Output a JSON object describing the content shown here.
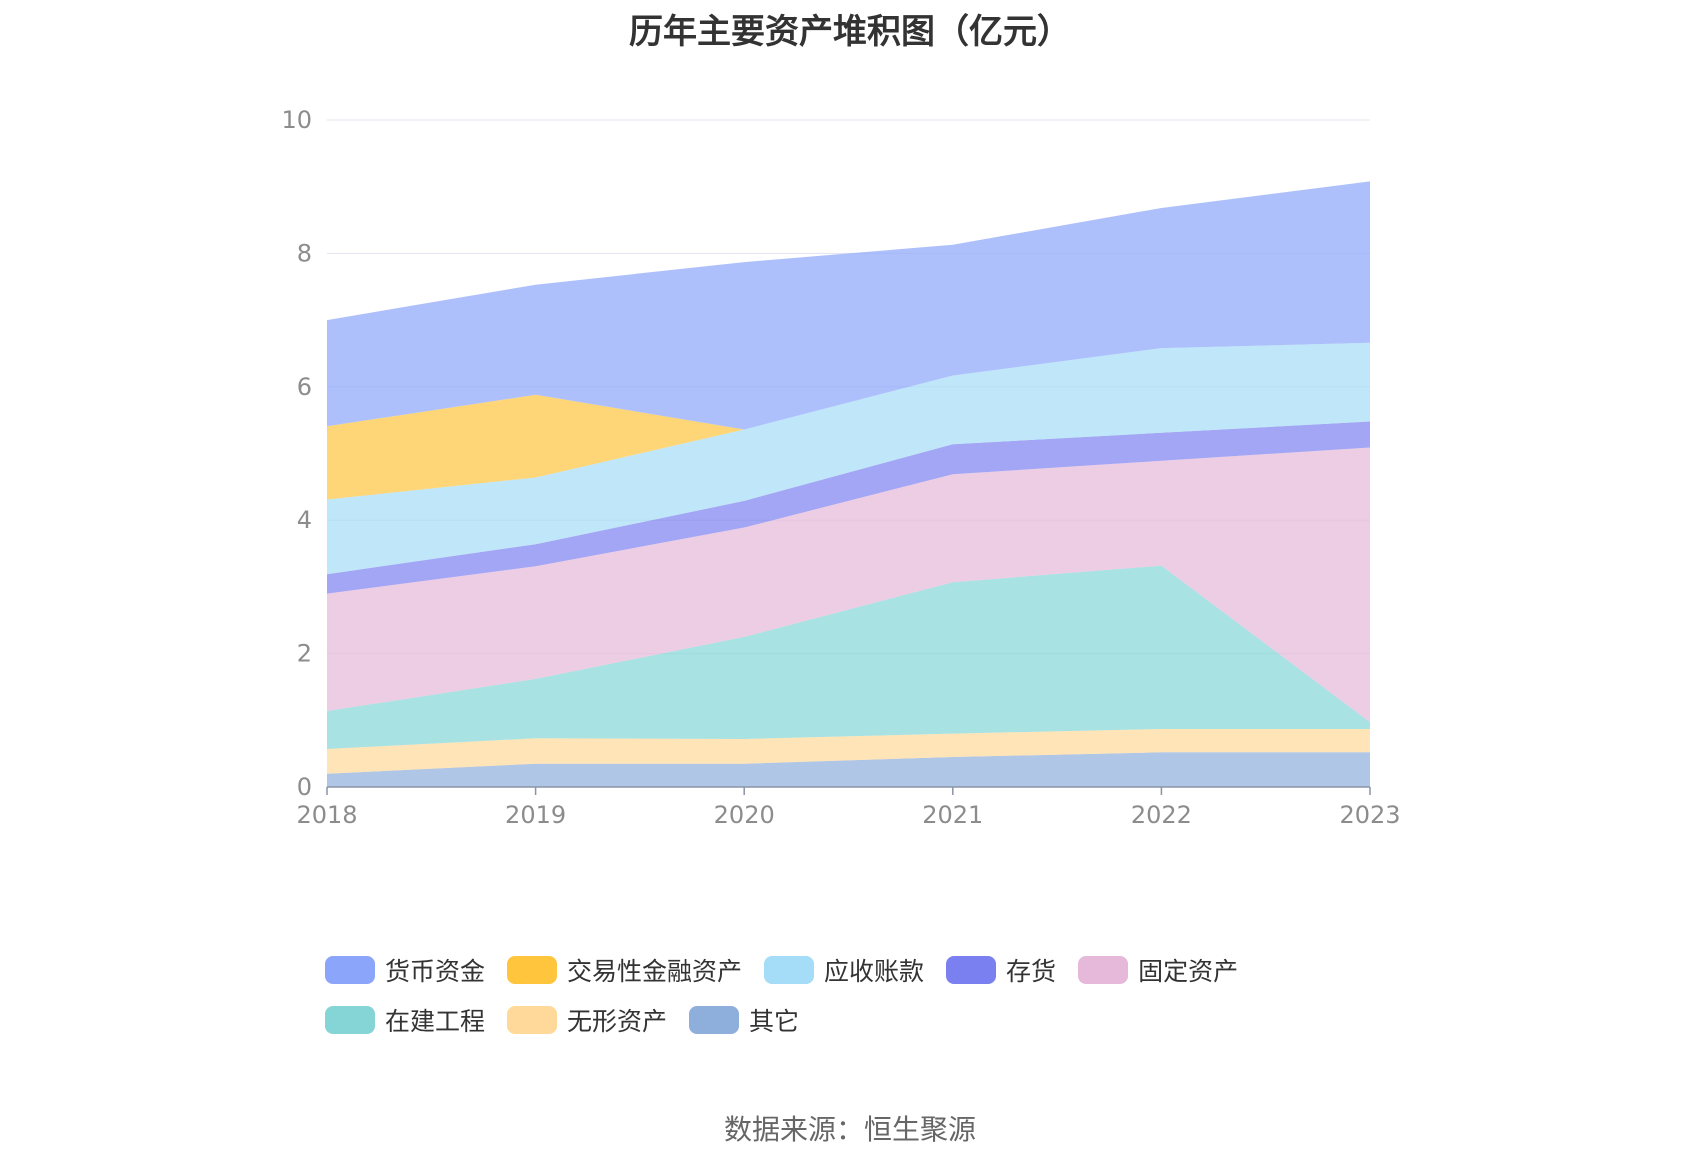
{
  "title": "历年主要资产堆积图（亿元）",
  "source": "数据来源：恒生聚源",
  "chart_data": {
    "type": "area",
    "stacked": true,
    "x": [
      "2018",
      "2019",
      "2020",
      "2021",
      "2022",
      "2023"
    ],
    "ylim": [
      0,
      10
    ],
    "yticks": [
      "0",
      "2",
      "4",
      "6",
      "8",
      "10"
    ],
    "grid": true,
    "legend_position": "bottom",
    "series": [
      {
        "name": "其它",
        "color": "#8eaedc",
        "values": [
          0.2,
          0.35,
          0.35,
          0.45,
          0.52,
          0.52
        ]
      },
      {
        "name": "无形资产",
        "color": "#ffd999",
        "values": [
          0.37,
          0.38,
          0.37,
          0.35,
          0.35,
          0.35
        ]
      },
      {
        "name": "在建工程",
        "color": "#85d5d6",
        "values": [
          0.57,
          0.89,
          1.53,
          2.27,
          2.45,
          0.1
        ]
      },
      {
        "name": "固定资产",
        "color": "#e6b8d9",
        "values": [
          1.76,
          1.69,
          1.64,
          1.62,
          1.57,
          4.12
        ]
      },
      {
        "name": "存货",
        "color": "#7a80f0",
        "values": [
          0.29,
          0.33,
          0.4,
          0.45,
          0.42,
          0.39
        ]
      },
      {
        "name": "应收账款",
        "color": "#a5dcf8",
        "values": [
          1.12,
          1.0,
          1.07,
          1.03,
          1.27,
          1.18
        ]
      },
      {
        "name": "交易性金融资产",
        "color": "#ffc53d",
        "values": [
          1.1,
          1.24,
          0.0,
          0.0,
          0.0,
          0.0
        ]
      },
      {
        "name": "货币资金",
        "color": "#8aa5fa",
        "values": [
          1.59,
          1.65,
          2.51,
          1.96,
          2.1,
          2.42
        ]
      }
    ]
  },
  "legend_order": [
    "货币资金",
    "交易性金融资产",
    "应收账款",
    "存货",
    "固定资产",
    "在建工程",
    "无形资产",
    "其它"
  ]
}
